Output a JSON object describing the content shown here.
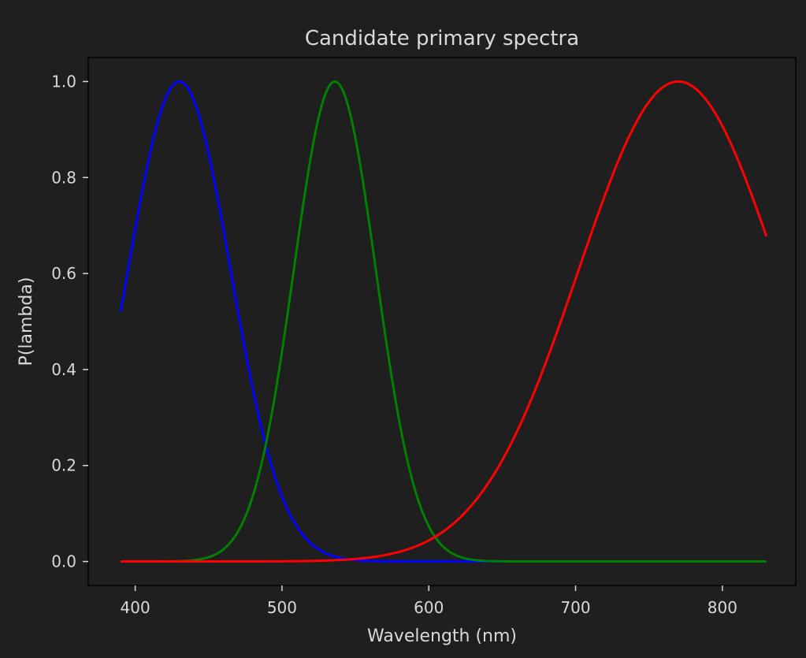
{
  "chart_data": {
    "type": "line",
    "title": "Candidate primary spectra",
    "xlabel": "Wavelength (nm)",
    "ylabel": "P(lambda)",
    "xlim": [
      368,
      850
    ],
    "ylim": [
      -0.05,
      1.05
    ],
    "xticks": [
      400,
      500,
      600,
      700,
      800
    ],
    "yticks": [
      0.0,
      0.2,
      0.4,
      0.6,
      0.8,
      1.0
    ],
    "x_range": [
      390,
      830
    ],
    "grid": false,
    "legend": "none",
    "series": [
      {
        "color": "#0000ff",
        "shape": "gaussian",
        "peak_wavelength": 430,
        "sigma": 35,
        "peak_value": 1.0
      },
      {
        "color": "#008000",
        "shape": "gaussian",
        "peak_wavelength": 536,
        "sigma": 28,
        "peak_value": 1.0
      },
      {
        "color": "#ff0000",
        "shape": "gaussian",
        "peak_wavelength": 770,
        "sigma": 68,
        "peak_value": 1.0
      }
    ]
  },
  "colors": {
    "background": "#1f1f1f",
    "axes_frame": "#000000",
    "text": "#d9d9d9"
  }
}
